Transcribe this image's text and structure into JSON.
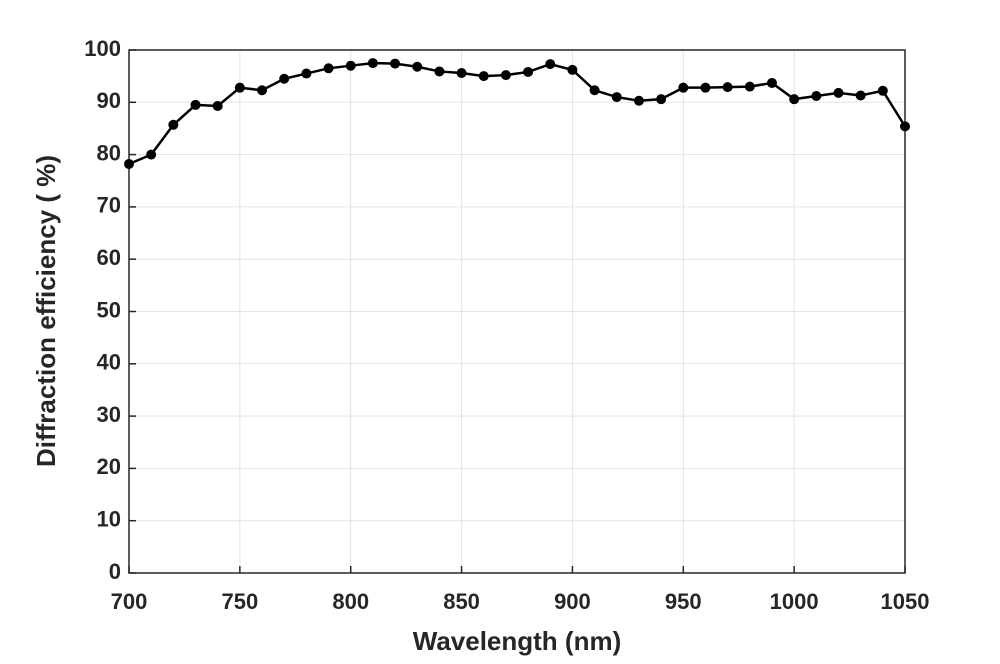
{
  "chart_data": {
    "type": "line",
    "xlabel": "Wavelength  (nm)",
    "ylabel": "Diffraction efficiency ( %)",
    "x": [
      700,
      710,
      720,
      730,
      740,
      750,
      760,
      770,
      780,
      790,
      800,
      810,
      820,
      830,
      840,
      850,
      860,
      870,
      880,
      890,
      900,
      910,
      920,
      930,
      940,
      950,
      960,
      970,
      980,
      990,
      1000,
      1010,
      1020,
      1030,
      1040,
      1050
    ],
    "series": [
      {
        "color": "#000000",
        "values": [
          78.2,
          80,
          85.7,
          89.5,
          89.3,
          92.8,
          92.3,
          94.5,
          95.5,
          96.5,
          97,
          97.5,
          97.4,
          96.8,
          95.9,
          95.6,
          95,
          95.2,
          95.8,
          97.3,
          96.2,
          92.3,
          91,
          90.3,
          90.6,
          92.8,
          92.8,
          92.9,
          93,
          93.7,
          90.6,
          91.2,
          91.8,
          91.3,
          92.2,
          85.4
        ]
      }
    ],
    "xlim": [
      700,
      1050
    ],
    "xticks": [
      700,
      750,
      800,
      850,
      900,
      950,
      1000,
      1050
    ],
    "ylim": [
      0,
      100
    ],
    "yticks": [
      0,
      10,
      20,
      30,
      40,
      50,
      60,
      70,
      80,
      90,
      100
    ],
    "grid": true
  }
}
